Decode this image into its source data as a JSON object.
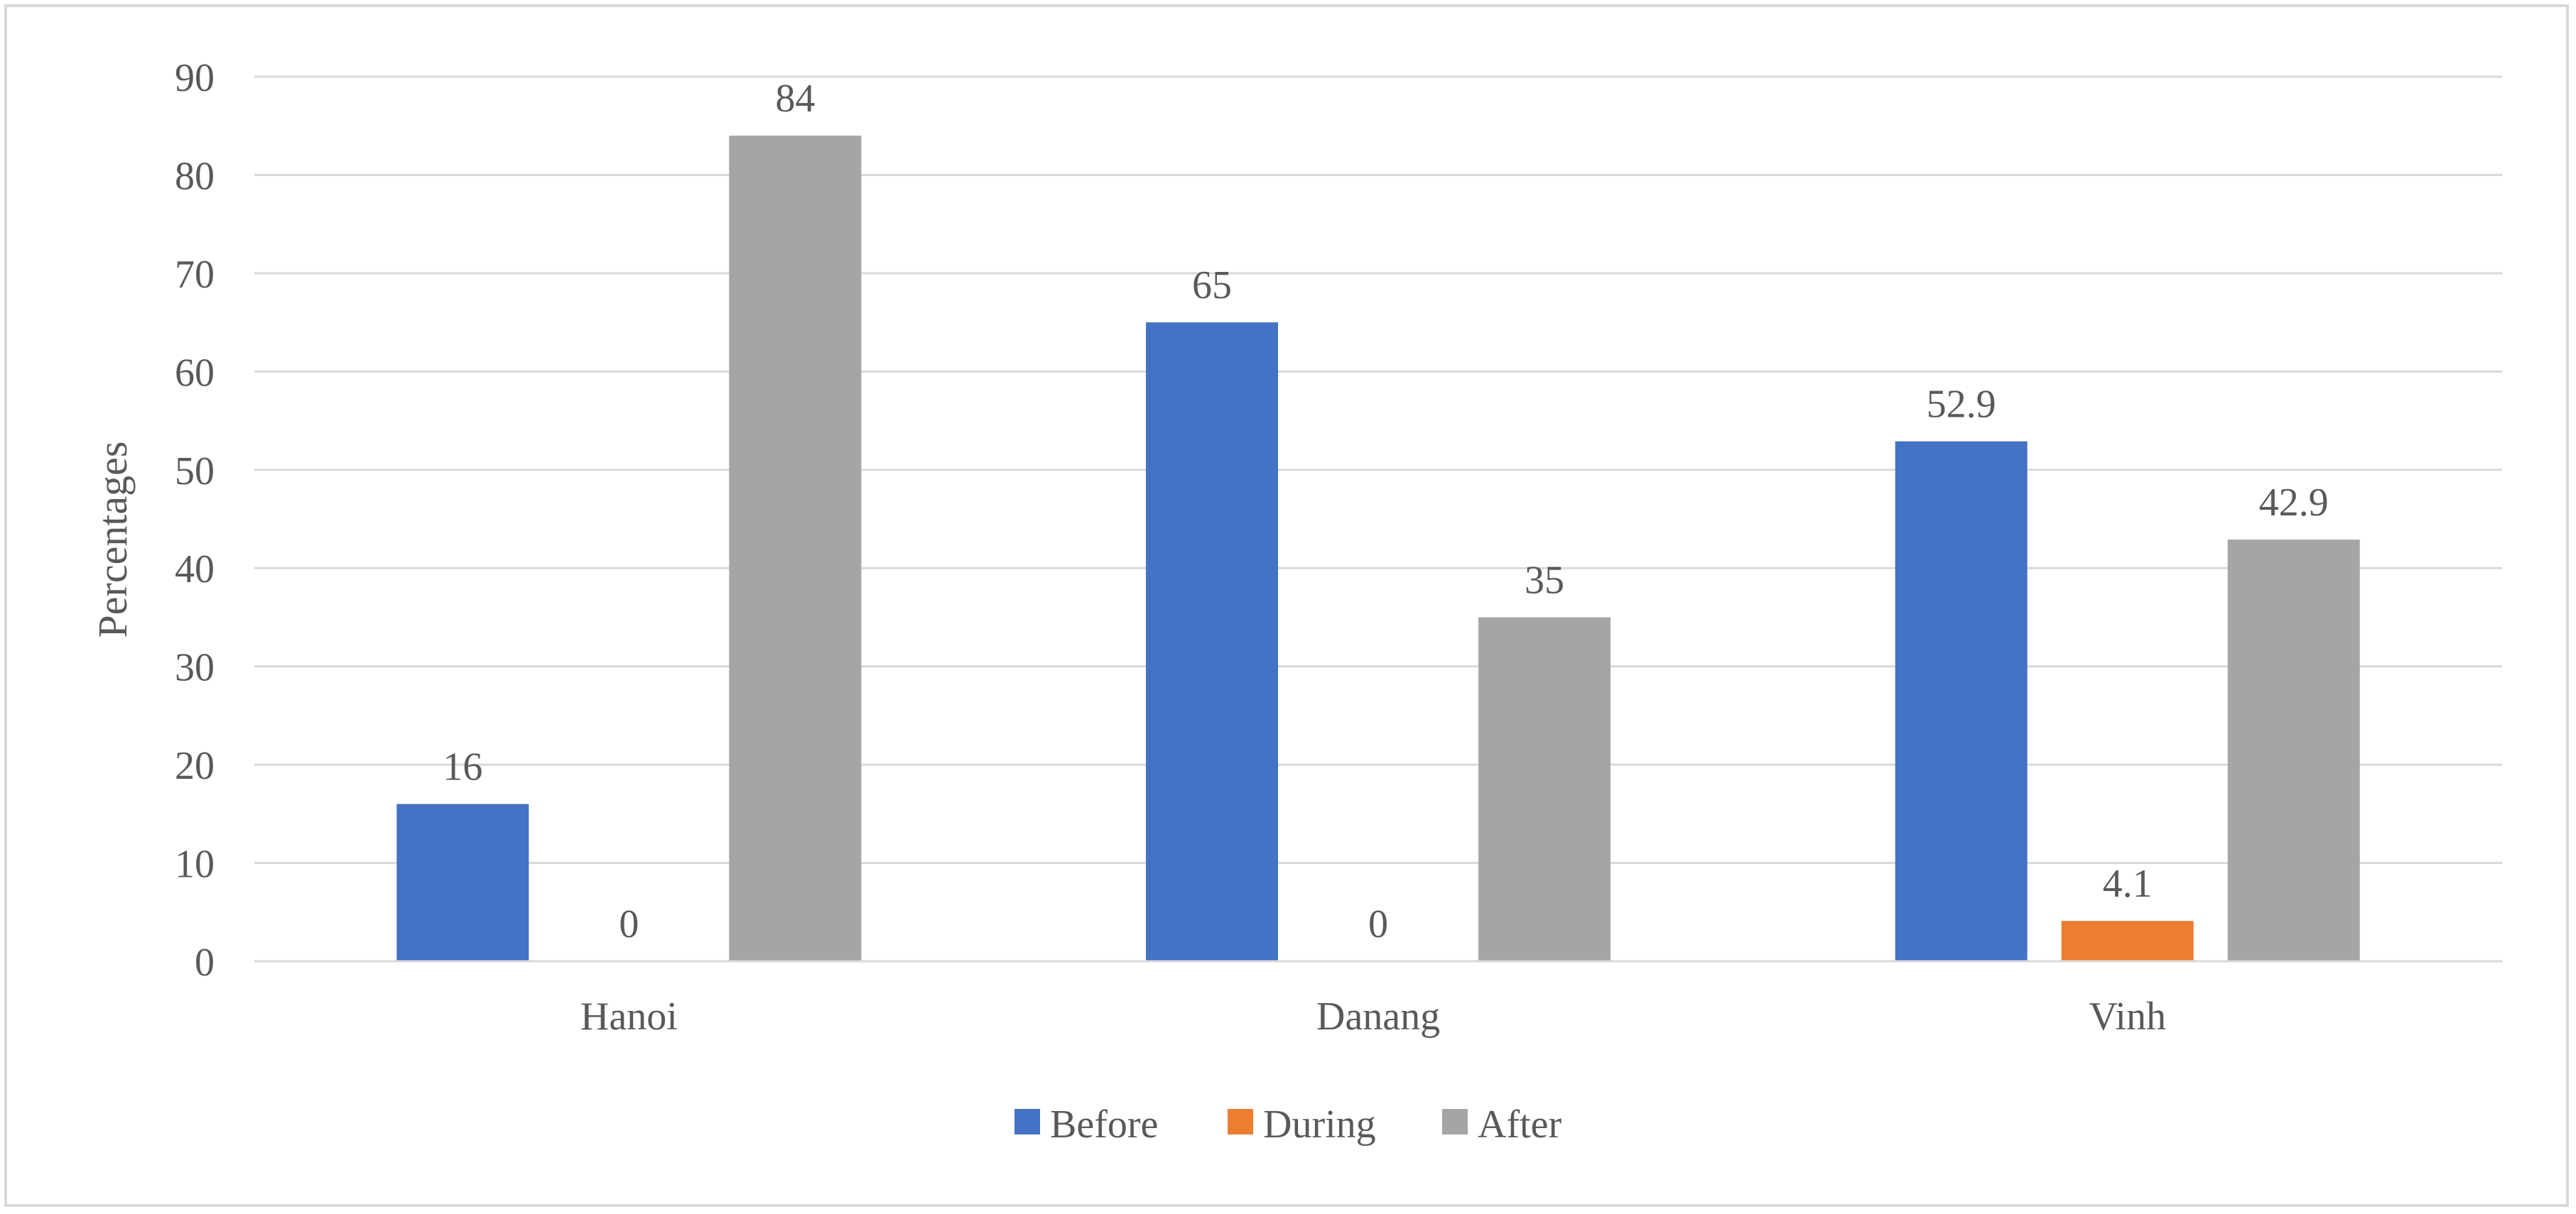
{
  "chart_data": {
    "type": "bar",
    "title": "",
    "xlabel": "",
    "ylabel": "Percentages",
    "ylim": [
      0,
      90
    ],
    "yticks": [
      0,
      10,
      20,
      30,
      40,
      50,
      60,
      70,
      80,
      90
    ],
    "grid": true,
    "legend_position": "bottom",
    "categories": [
      "Hanoi",
      "Danang",
      "Vinh"
    ],
    "series": [
      {
        "name": "Before",
        "color": "#4472c4",
        "values": [
          16,
          65,
          52.9
        ],
        "labels": [
          "16",
          "65",
          "52.9"
        ]
      },
      {
        "name": "During",
        "color": "#ed7d31",
        "values": [
          0,
          0,
          4.1
        ],
        "labels": [
          "0",
          "0",
          "4.1"
        ]
      },
      {
        "name": "After",
        "color": "#a5a5a5",
        "values": [
          84,
          35,
          42.9
        ],
        "labels": [
          "84",
          "35",
          "42.9"
        ]
      }
    ]
  }
}
